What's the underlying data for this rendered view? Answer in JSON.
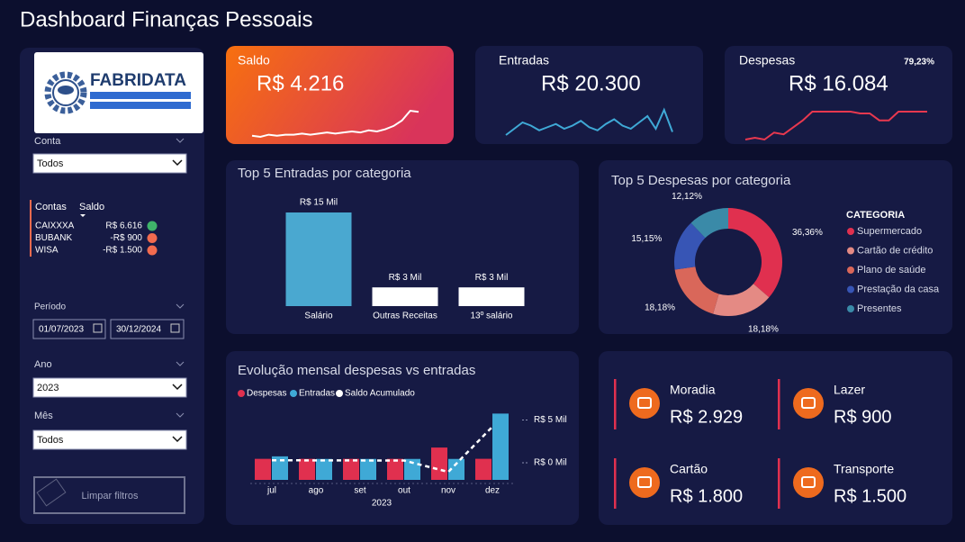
{
  "header": {
    "title": "Dashboard Finanças Pessoais"
  },
  "sidebar": {
    "logo": "FABRIDATA",
    "conta": {
      "label": "Conta",
      "value": "Todos"
    },
    "accounts": {
      "headers": [
        "Contas",
        "Saldo"
      ],
      "rows": [
        {
          "name": "CAIXXXA",
          "balance": "R$ 6.616",
          "color": "#3fb36a"
        },
        {
          "name": "BUBANK",
          "balance": "-R$ 900",
          "color": "#f26b4f"
        },
        {
          "name": "WISA",
          "balance": "-R$ 1.500",
          "color": "#f26b4f"
        }
      ]
    },
    "periodo": {
      "label": "Período",
      "start": "01/07/2023",
      "end": "30/12/2024"
    },
    "ano": {
      "label": "Ano",
      "value": "2023"
    },
    "mes": {
      "label": "Mês",
      "value": "Todos"
    },
    "clear_button": "Limpar filtros"
  },
  "kpis": [
    {
      "label": "Saldo",
      "value": "R$ 4.216"
    },
    {
      "label": "Entradas",
      "value": "R$ 20.300"
    },
    {
      "label": "Despesas",
      "value": "R$ 16.084",
      "note": "79,23%"
    }
  ],
  "expense_cards": [
    {
      "label": "Moradia",
      "value": "R$ 2.929"
    },
    {
      "label": "Lazer",
      "value": "R$ 900"
    },
    {
      "label": "Cartão",
      "value": "R$ 1.800"
    },
    {
      "label": "Transporte",
      "value": "R$ 1.500"
    }
  ],
  "chart_data": [
    {
      "type": "line",
      "color": "#ffffff",
      "values": [
        5,
        4,
        6,
        5,
        6,
        6,
        7,
        6,
        7,
        8,
        7,
        8,
        9,
        8,
        10,
        9,
        11,
        14,
        19,
        28,
        27
      ]
    },
    {
      "type": "line",
      "color": "#3fa9d6",
      "values": [
        10,
        14,
        18,
        16,
        13,
        15,
        17,
        14,
        16,
        19,
        15,
        13,
        17,
        20,
        16,
        14,
        18,
        22,
        14,
        26,
        12
      ]
    },
    {
      "type": "line",
      "color": "#e8384f",
      "values": [
        2,
        3,
        2,
        6,
        5,
        9,
        13,
        18,
        18,
        18,
        18,
        18,
        17,
        17,
        13,
        13,
        18,
        18,
        18,
        18
      ]
    },
    {
      "type": "bar",
      "title": "Top 5 Entradas por categoria",
      "categories": [
        "Salário",
        "Outras Receitas",
        "13º salário"
      ],
      "values": [
        15000,
        3000,
        3000
      ],
      "value_labels": [
        "R$ 15 Mil",
        "R$ 3 Mil",
        "R$ 3 Mil"
      ],
      "colors": [
        "#4aa8d0",
        "#ffffff",
        "#ffffff"
      ]
    },
    {
      "type": "pie",
      "title": "Top 5 Despesas por categoria",
      "legend_title": "CATEGORIA",
      "categories": [
        "Supermercado",
        "Cartão de crédito",
        "Plano de saúde",
        "Prestação da casa",
        "Presentes"
      ],
      "values": [
        36.36,
        18.18,
        18.18,
        15.15,
        12.12
      ],
      "value_labels": [
        "36,36%",
        "18,18%",
        "18,18%",
        "15,15%",
        "12,12%"
      ],
      "colors": [
        "#e0304f",
        "#e48a84",
        "#d9675a",
        "#3755b5",
        "#3a8aa8"
      ]
    },
    {
      "type": "combo",
      "title": "Evolução mensal despesas vs entradas",
      "x_label": "2023",
      "categories": [
        "jul",
        "ago",
        "set",
        "out",
        "nov",
        "dez"
      ],
      "ylim": [
        0,
        8000
      ],
      "y2lim": [
        -2000,
        6000
      ],
      "y2ticks": [
        {
          "value": 5000,
          "label": "R$ 5 Mil"
        },
        {
          "value": 0,
          "label": "R$ 0 Mil"
        }
      ],
      "series": [
        {
          "name": "Despesas",
          "color": "#e0304f",
          "values": [
            2460,
            2460,
            2460,
            2460,
            3780,
            2464
          ]
        },
        {
          "name": "Entradas",
          "color": "#3fa9d6",
          "values": [
            2750,
            2450,
            2450,
            2450,
            2450,
            7750
          ]
        },
        {
          "name": "Saldo Acumulado",
          "color": "#ffffff",
          "axis": "y2",
          "values": [
            290,
            280,
            270,
            260,
            -1070,
            4216
          ]
        }
      ]
    }
  ]
}
